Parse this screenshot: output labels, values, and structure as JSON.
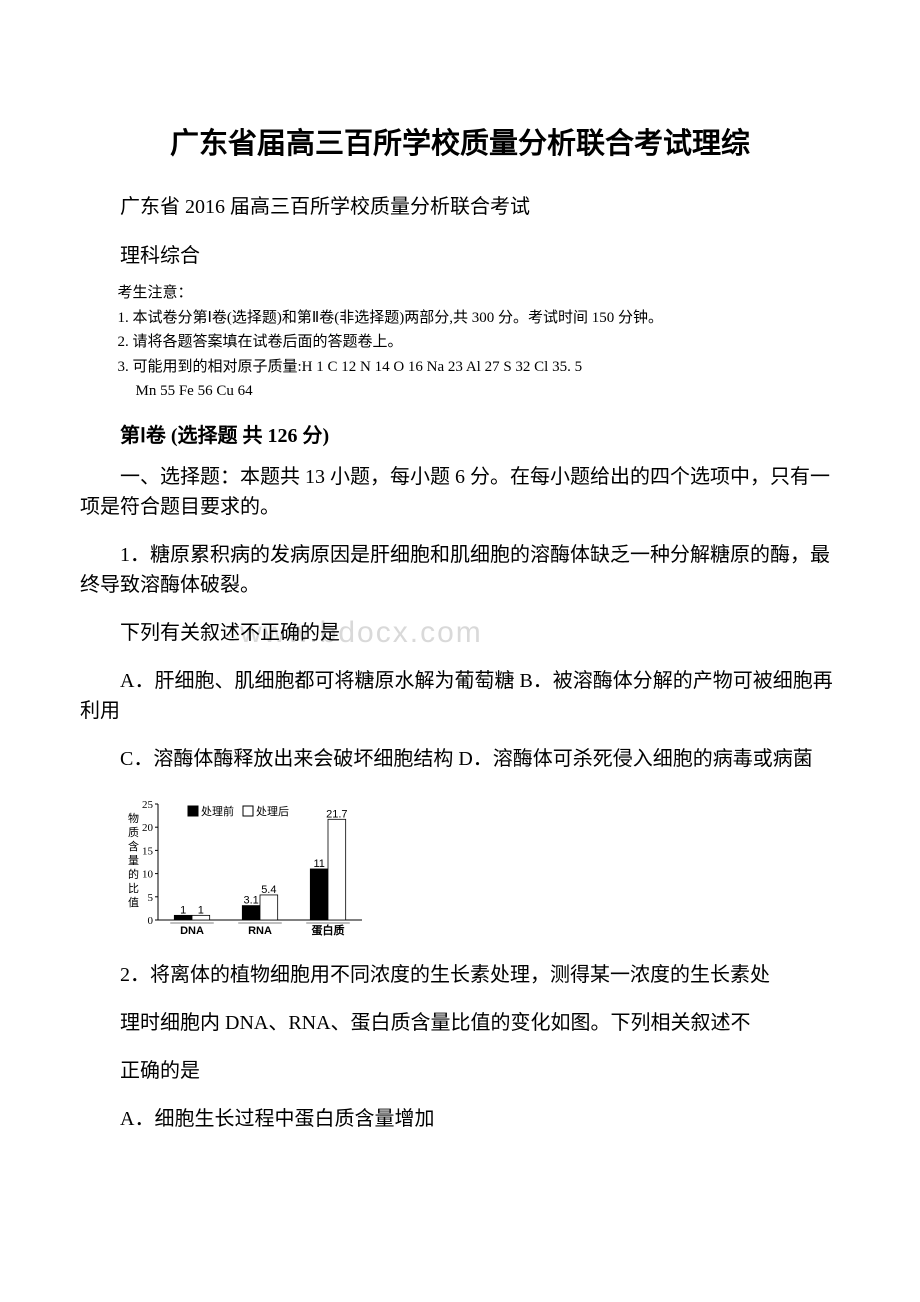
{
  "title": "广东省届高三百所学校质量分析联合考试理综",
  "subtitle": "广东省 2016 届高三百所学校质量分析联合考试",
  "subject": "理科综合",
  "notice": {
    "header": "考生注意：",
    "line1": "1. 本试卷分第Ⅰ卷(选择题)和第Ⅱ卷(非选择题)两部分,共 300 分。考试时间 150 分钟。",
    "line2": "2. 请将各题答案填在试卷后面的答题卷上。",
    "line3": "3. 可能用到的相对原子质量:H 1   C 12   N 14   O 16   Na 23   Al 27   S 32   Cl 35. 5",
    "line3b": "Mn 55   Fe 56   Cu 64"
  },
  "section1_header": "第Ⅰ卷   (选择题   共 126 分)",
  "section1_intro": "一、选择题：本题共 13 小题，每小题 6 分。在每小题给出的四个选项中，只有一项是符合题目要求的。",
  "q1": {
    "stem": "1．糖原累积病的发病原因是肝细胞和肌细胞的溶酶体缺乏一种分解糖原的酶，最终导致溶酶体破裂。",
    "stem2": "下列有关叙述不正确的是",
    "optA": "A．肝细胞、肌细胞都可将糖原水解为葡萄糖 B．被溶酶体分解的产物可被细胞再利用",
    "optC": "C．溶酶体酶释放出来会破坏细胞结构 D．溶酶体可杀死侵入细胞的病毒或病菌"
  },
  "q2": {
    "stem": "2．将离体的植物细胞用不同浓度的生长素处理，测得某一浓度的生长素处",
    "stem2": "理时细胞内 DNA、RNA、蛋白质含量比值的变化如图。下列相关叙述不",
    "stem3": "正确的是",
    "optA": "A．细胞生长过程中蛋白质含量增加"
  },
  "watermark": "www.bdocx.com",
  "chart": {
    "type": "bar",
    "ytitle": "物质含量的比值",
    "ylim": [
      0,
      25
    ],
    "ytick_step": 5,
    "categories": [
      "DNA",
      "RNA",
      "蛋白质"
    ],
    "series": [
      {
        "name": "处理前",
        "values": [
          1,
          3.1,
          11
        ],
        "color": "#000000"
      },
      {
        "name": "处理后",
        "values": [
          1,
          5.4,
          21.7
        ],
        "color": "#ffffff"
      }
    ],
    "legend_labels": [
      "处理前",
      "处理后"
    ],
    "value_labels": [
      "1",
      "1",
      "3.1",
      "5.4",
      "11",
      "21.7"
    ],
    "axis_color": "#000000",
    "grid": false,
    "bar_border": "#000000"
  }
}
